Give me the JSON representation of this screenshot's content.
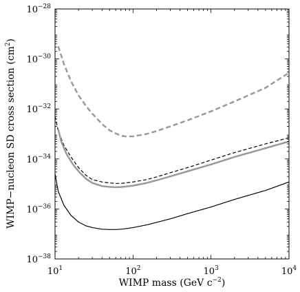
{
  "chart_data": {
    "type": "line",
    "xlabel": {
      "text": "WIMP mass (GeV c",
      "sup": "−2",
      "tail": ")"
    },
    "ylabel": {
      "text": "WIMP−nucleon SD cross section (cm",
      "sup": "2",
      "tail": ")"
    },
    "xscale": "log",
    "yscale": "log",
    "xlim": [
      10,
      10000
    ],
    "ylim": [
      1e-38,
      1e-28
    ],
    "grid": false,
    "legend": "none",
    "x_ticks": [
      {
        "value": 10,
        "base": "10",
        "exp": "1"
      },
      {
        "value": 100,
        "base": "10",
        "exp": "2"
      },
      {
        "value": 1000,
        "base": "10",
        "exp": "3"
      },
      {
        "value": 10000,
        "base": "10",
        "exp": "4"
      }
    ],
    "y_ticks": [
      {
        "value": 1e-38,
        "base": "10",
        "exp": "−38"
      },
      {
        "value": 1e-36,
        "base": "10",
        "exp": "−36"
      },
      {
        "value": 1e-34,
        "base": "10",
        "exp": "−34"
      },
      {
        "value": 1e-32,
        "base": "10",
        "exp": "−32"
      },
      {
        "value": 1e-30,
        "base": "10",
        "exp": "−30"
      },
      {
        "value": 1e-28,
        "base": "10",
        "exp": "−28"
      }
    ],
    "series": [
      {
        "color": "#999999",
        "dash": "dashed",
        "width": 2.5,
        "x": [
          11,
          13,
          16,
          20,
          25,
          30,
          40,
          50,
          60,
          70,
          80,
          100,
          150,
          200,
          300,
          500,
          1000,
          2000,
          5000,
          10000
        ],
        "y": [
          3.2e-30,
          6.3e-31,
          1.3e-31,
          3.5e-32,
          1.3e-32,
          6.5e-33,
          2.5e-33,
          1.4e-33,
          1.05e-33,
          8.5e-34,
          8e-34,
          8e-34,
          1e-33,
          1.3e-33,
          2e-33,
          3.5e-33,
          8e-33,
          2e-32,
          7e-32,
          2.8e-31
        ]
      },
      {
        "color": "#000000",
        "dash": "dashed",
        "width": 1.2,
        "x": [
          10,
          11,
          13,
          16,
          20,
          25,
          30,
          40,
          50,
          60,
          70,
          80,
          100,
          150,
          200,
          300,
          500,
          1000,
          2000,
          5000,
          10000
        ],
        "y": [
          5e-33,
          1.3e-33,
          3.5e-34,
          1.2e-34,
          4.5e-35,
          2.2e-35,
          1.5e-35,
          1.2e-35,
          1.1e-35,
          1.05e-35,
          1.05e-35,
          1.1e-35,
          1.2e-35,
          1.5e-35,
          1.9e-35,
          2.8e-35,
          4.5e-35,
          9e-35,
          1.8e-34,
          4e-34,
          7e-34
        ]
      },
      {
        "color": "#999999",
        "dash": "solid",
        "width": 2.5,
        "x": [
          11,
          12,
          14,
          17,
          20,
          25,
          30,
          40,
          50,
          60,
          70,
          80,
          100,
          150,
          200,
          300,
          500,
          1000,
          2000,
          5000,
          10000
        ],
        "y": [
          1.5e-33,
          5e-34,
          1.6e-34,
          6e-35,
          3.2e-35,
          1.6e-35,
          1.1e-35,
          8.2e-36,
          7.6e-36,
          7.4e-36,
          7.5e-36,
          7.8e-36,
          8.5e-36,
          1.1e-35,
          1.4e-35,
          2e-35,
          3.2e-35,
          6e-35,
          1.2e-34,
          2.7e-34,
          5e-34
        ]
      },
      {
        "color": "#000000",
        "dash": "solid",
        "width": 1.2,
        "x": [
          10,
          11,
          13,
          16,
          20,
          25,
          30,
          40,
          50,
          60,
          70,
          80,
          100,
          150,
          200,
          300,
          500,
          1000,
          2000,
          5000,
          10000
        ],
        "y": [
          2.5e-35,
          5e-36,
          1.4e-36,
          5.5e-37,
          3e-37,
          2.1e-37,
          1.8e-37,
          1.55e-37,
          1.5e-37,
          1.5e-37,
          1.55e-37,
          1.62e-37,
          1.8e-37,
          2.3e-37,
          2.9e-37,
          4e-37,
          6.5e-37,
          1.2e-36,
          2.4e-36,
          5.5e-36,
          1.2e-35
        ]
      }
    ]
  }
}
